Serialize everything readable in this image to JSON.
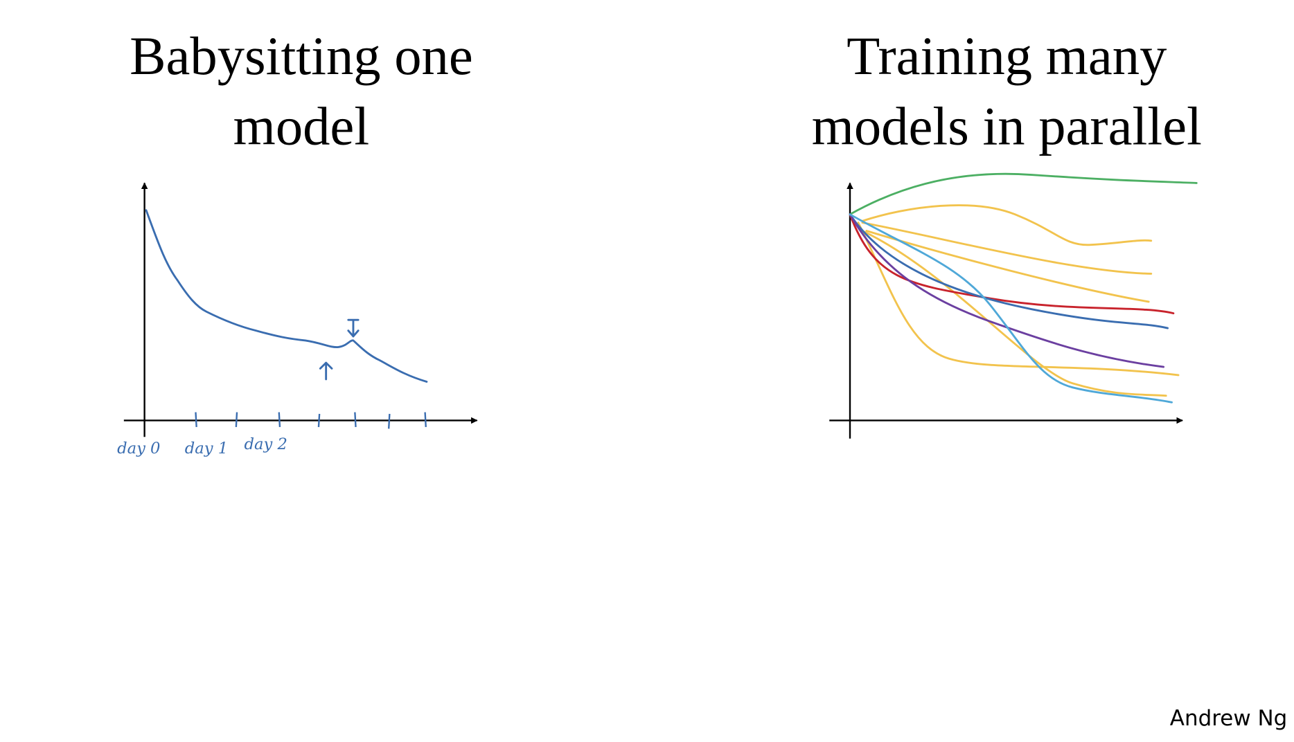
{
  "left_panel": {
    "title_lines": [
      "Babysitting one",
      "model"
    ],
    "axis_labels": [
      "day 0",
      "day 1",
      "day 2"
    ]
  },
  "right_panel": {
    "title_lines": [
      "Training many",
      "models in parallel"
    ]
  },
  "footer": {
    "author": "Andrew Ng"
  }
}
